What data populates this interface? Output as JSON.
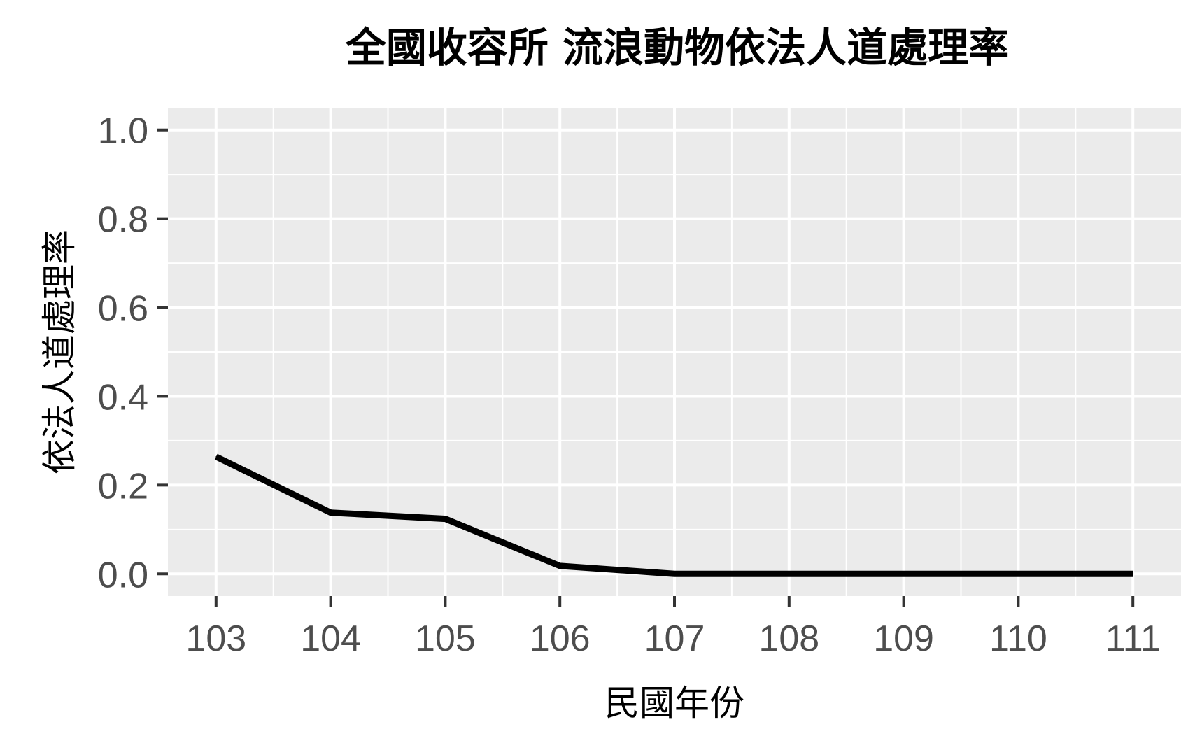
{
  "chart_data": {
    "type": "line",
    "title": "全國收容所 流浪動物依法人道處理率",
    "xlabel": "民國年份",
    "ylabel": "依法人道處理率",
    "x": [
      103,
      104,
      105,
      106,
      107,
      108,
      109,
      110,
      111
    ],
    "x_tick_labels": [
      "103",
      "104",
      "105",
      "106",
      "107",
      "108",
      "109",
      "110",
      "111"
    ],
    "y_tick_labels": [
      "0.0",
      "0.2",
      "0.4",
      "0.6",
      "0.8",
      "1.0"
    ],
    "y_ticks": [
      0.0,
      0.2,
      0.4,
      0.6,
      0.8,
      1.0
    ],
    "series": [
      {
        "values": [
          0.264,
          0.138,
          0.124,
          0.018,
          0.0,
          0.0,
          0.0,
          0.0,
          0.0
        ]
      }
    ],
    "xlim": [
      102.58,
      111.42
    ],
    "ylim": [
      -0.05,
      1.05
    ],
    "grid": true,
    "colors": {
      "panel": "#ebebeb",
      "grid": "#ffffff",
      "line": "#000000",
      "tick": "#4d4d4d"
    }
  }
}
